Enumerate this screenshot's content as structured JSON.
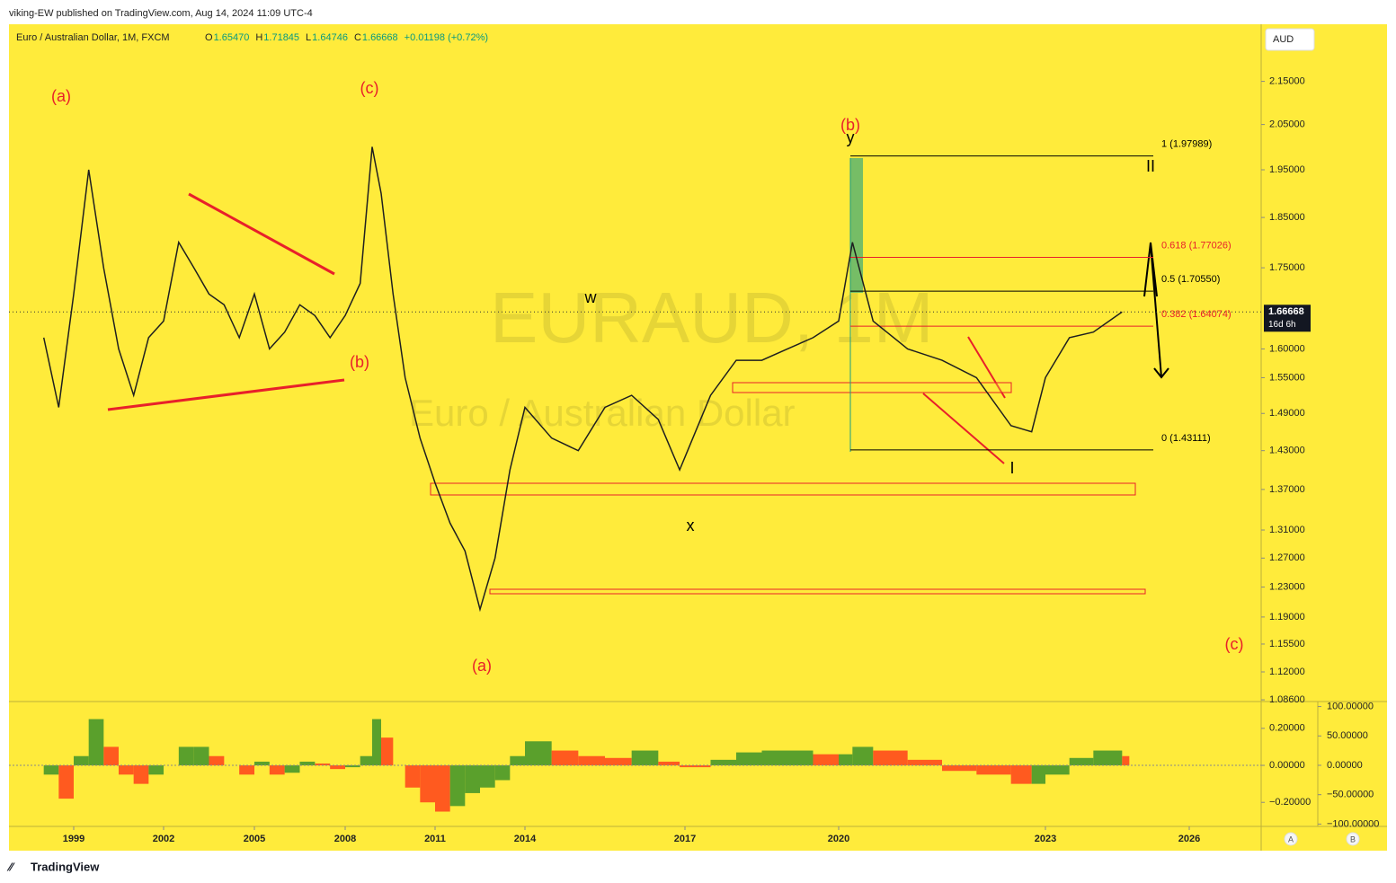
{
  "header": {
    "published": "viking-EW published on TradingView.com, Aug 14, 2024 11:09 UTC-4"
  },
  "legend": {
    "symbol": "Euro / Australian Dollar, 1M, FXCM",
    "ohlc": [
      {
        "key": "O",
        "value": "1.65470"
      },
      {
        "key": "H",
        "value": "1.71845"
      },
      {
        "key": "L",
        "value": "1.64746"
      },
      {
        "key": "C",
        "value": "1.66668"
      }
    ],
    "change": "+0.01198 (+0.72%)"
  },
  "currency_button": "AUD",
  "watermark": {
    "ticker": "EURAUD, 1M",
    "name": "Euro / Australian Dollar"
  },
  "footer": {
    "brand": "TradingView"
  },
  "scale_buttons": [
    "A",
    "B"
  ],
  "chart_data": [
    {
      "type": "line",
      "log_scale": true,
      "color": "#1f1f1f",
      "x": [
        1998.0,
        1998.5,
        1999.0,
        1999.5,
        2000.0,
        2000.5,
        2001.0,
        2001.5,
        2002.0,
        2002.5,
        2003.0,
        2003.5,
        2004.0,
        2004.5,
        2005.0,
        2005.5,
        2006.0,
        2006.5,
        2007.0,
        2007.5,
        2008.0,
        2008.5,
        2008.9,
        2009.2,
        2009.6,
        2010.0,
        2010.5,
        2011.0,
        2011.5,
        2012.0,
        2012.5,
        2013.0,
        2013.5,
        2014.0,
        2014.5,
        2015.0,
        2015.5,
        2016.0,
        2016.5,
        2016.9,
        2017.5,
        2018.0,
        2018.5,
        2019.0,
        2019.5,
        2020.0,
        2020.2,
        2020.5,
        2021.0,
        2021.5,
        2022.0,
        2022.5,
        2022.8,
        2023.0,
        2023.5,
        2024.0,
        2024.6
      ],
      "values": [
        1.62,
        1.5,
        1.7,
        1.95,
        1.75,
        1.6,
        1.52,
        1.62,
        1.65,
        1.8,
        1.75,
        1.7,
        1.68,
        1.62,
        1.7,
        1.6,
        1.63,
        1.68,
        1.66,
        1.62,
        1.66,
        1.72,
        2.0,
        1.9,
        1.7,
        1.55,
        1.45,
        1.38,
        1.32,
        1.28,
        1.2,
        1.27,
        1.4,
        1.5,
        1.45,
        1.43,
        1.5,
        1.52,
        1.48,
        1.4,
        1.52,
        1.58,
        1.58,
        1.6,
        1.62,
        1.65,
        1.8,
        1.65,
        1.6,
        1.58,
        1.55,
        1.47,
        1.46,
        1.55,
        1.62,
        1.63,
        1.66668
      ],
      "xticks": [
        1999,
        2002,
        2005,
        2008,
        2011,
        2014,
        2017,
        2020,
        2023,
        2026
      ],
      "ylim": [
        1.085,
        2.29
      ],
      "yticks": [
        {
          "value": 2.15,
          "label": "2.15000"
        },
        {
          "value": 2.05,
          "label": "2.05000"
        },
        {
          "value": 1.95,
          "label": "1.95000"
        },
        {
          "value": 1.85,
          "label": "1.85000"
        },
        {
          "value": 1.75,
          "label": "1.75000"
        },
        {
          "value": 1.6,
          "label": "1.60000"
        },
        {
          "value": 1.55,
          "label": "1.55000"
        },
        {
          "value": 1.49,
          "label": "1.49000"
        },
        {
          "value": 1.43,
          "label": "1.43000"
        },
        {
          "value": 1.37,
          "label": "1.37000"
        },
        {
          "value": 1.31,
          "label": "1.31000"
        },
        {
          "value": 1.27,
          "label": "1.27000"
        },
        {
          "value": 1.23,
          "label": "1.23000"
        },
        {
          "value": 1.19,
          "label": "1.19000"
        },
        {
          "value": 1.155,
          "label": "1.15500"
        },
        {
          "value": 1.12,
          "label": "1.12000"
        },
        {
          "value": 1.086,
          "label": "1.08600"
        }
      ],
      "last_price": 1.66668,
      "countdown": "16d 6h",
      "fib_levels": [
        {
          "label": "1 (1.97989)",
          "value": 1.97989,
          "color": "#000000"
        },
        {
          "label": "0.618 (1.77026)",
          "value": 1.77026,
          "color": "#e8202a"
        },
        {
          "label": "0.5 (1.70550)",
          "value": 1.7055,
          "color": "#000000"
        },
        {
          "label": "0.382 (1.64074)",
          "value": 1.64074,
          "color": "#e8202a"
        },
        {
          "label": "0 (1.43111)",
          "value": 1.43111,
          "color": "#000000"
        }
      ],
      "annotations": [
        "(a)",
        "(c)",
        "(b)",
        "(a)",
        "w",
        "x",
        "(b)",
        "y",
        "I",
        "II",
        "(c)"
      ]
    },
    {
      "type": "oscillator",
      "colors": {
        "up": "#5aa02c",
        "down": "#ff5a1f"
      },
      "values": [
        -0.05,
        -0.18,
        0.05,
        0.25,
        0.1,
        -0.05,
        -0.1,
        -0.05,
        0.0,
        0.1,
        0.1,
        0.05,
        0.0,
        -0.05,
        0.02,
        -0.05,
        -0.04,
        0.02,
        0.01,
        -0.02,
        -0.01,
        0.05,
        0.25,
        0.15,
        0.0,
        -0.12,
        -0.2,
        -0.25,
        -0.22,
        -0.15,
        -0.12,
        -0.08,
        0.05,
        0.13,
        0.08,
        0.05,
        0.04,
        0.08,
        0.02,
        -0.01,
        0.03,
        0.07,
        0.08,
        0.08,
        0.06,
        0.06,
        0.1,
        0.08,
        0.03,
        -0.03,
        -0.05,
        -0.1,
        -0.1,
        -0.05,
        0.04,
        0.08,
        0.05
      ],
      "ylim": [
        -0.33,
        0.34
      ],
      "yticks": [
        {
          "value": 0.2,
          "label": "0.20000"
        },
        {
          "value": 0,
          "label": "0.00000"
        },
        {
          "value": -0.2,
          "label": "−0.20000"
        }
      ],
      "y2lim": [
        -104,
        107
      ],
      "y2ticks": [
        {
          "value": 100,
          "label": "100.00000"
        },
        {
          "value": 50,
          "label": "50.00000"
        },
        {
          "value": 0,
          "label": "0.00000"
        },
        {
          "value": -50,
          "label": "−50.00000"
        },
        {
          "value": -100,
          "label": "−100.00000"
        }
      ]
    }
  ]
}
